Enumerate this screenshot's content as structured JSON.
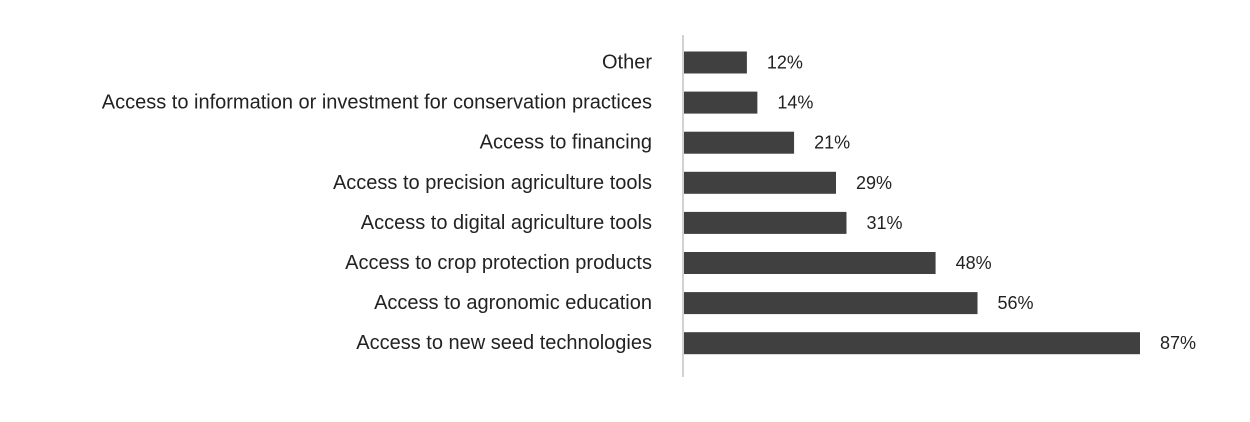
{
  "chart_data": {
    "type": "bar",
    "orientation": "horizontal",
    "categories": [
      "Other",
      "Access to information or investment for conservation practices",
      "Access to financing",
      "Access to precision agriculture tools",
      "Access to digital agriculture tools",
      "Access to crop protection products",
      "Access to agronomic education",
      "Access to new seed technologies"
    ],
    "values": [
      12,
      14,
      21,
      29,
      31,
      48,
      56,
      87
    ],
    "value_labels": [
      "12%",
      "14%",
      "21%",
      "29%",
      "31%",
      "48%",
      "56%",
      "87%"
    ],
    "unit": "%",
    "xlim": [
      0,
      100
    ],
    "grid": false,
    "legend": "none",
    "bar_color": "#404040",
    "axis_color": "#a6a6a6"
  }
}
